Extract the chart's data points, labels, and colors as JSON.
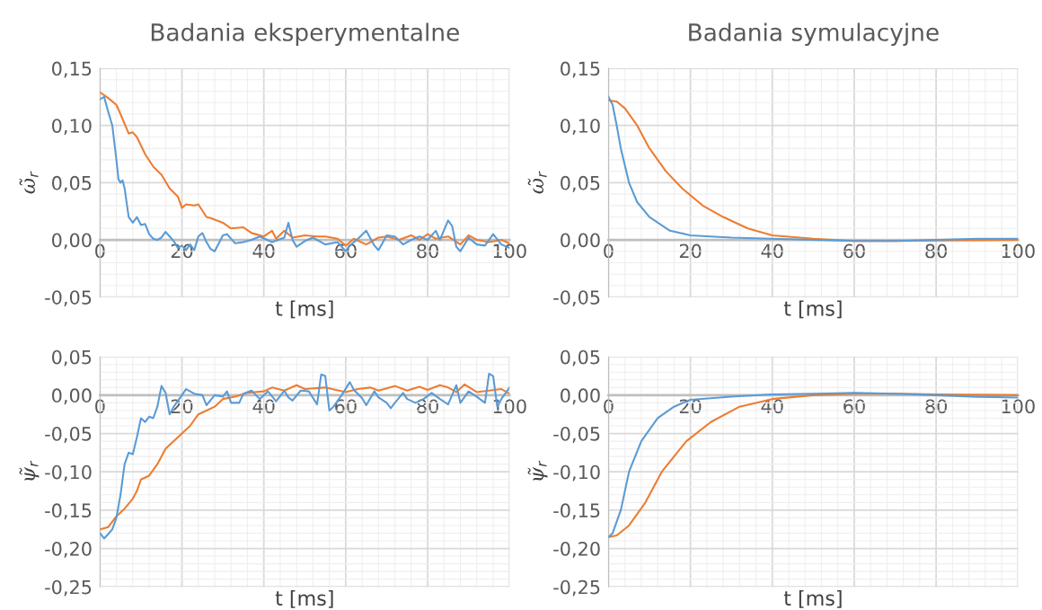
{
  "chart_data": [
    {
      "type": "line",
      "title": "Badania eksperymentalne",
      "xlabel": "t [ms]",
      "ylabel": "ω̃$_{r}$",
      "xlim": [
        0,
        100
      ],
      "xticks": [
        0,
        20,
        40,
        60,
        80,
        100
      ],
      "ylim": [
        -0.05,
        0.15
      ],
      "yticks": [
        {
          "value": -0.05,
          "label": "-0,05"
        },
        {
          "value": 0,
          "label": "0,00"
        },
        {
          "value": 0.05,
          "label": "0,05"
        },
        {
          "value": 0.1,
          "label": "0,10"
        },
        {
          "value": 0.15,
          "label": "0,15"
        }
      ],
      "grid": true,
      "legend": false,
      "series": [
        {
          "color": "#ed7d31",
          "x": [
            0,
            2,
            4,
            5,
            7,
            8,
            9,
            11,
            13,
            15,
            17,
            19,
            20,
            21,
            23,
            24,
            26,
            27,
            30,
            32,
            35,
            37,
            40,
            42,
            43,
            45,
            47,
            50,
            53,
            55,
            58,
            60,
            62,
            65,
            68,
            70,
            73,
            76,
            78,
            80,
            82,
            85,
            88,
            90,
            92,
            95,
            98,
            100
          ],
          "values": [
            0.129,
            0.124,
            0.118,
            0.11,
            0.093,
            0.094,
            0.09,
            0.075,
            0.064,
            0.057,
            0.045,
            0.038,
            0.028,
            0.031,
            0.03,
            0.031,
            0.02,
            0.019,
            0.015,
            0.01,
            0.011,
            0.006,
            0.003,
            0.008,
            0.001,
            0.008,
            0.002,
            0.004,
            0.003,
            0.003,
            0.001,
            -0.005,
            0.001,
            -0.004,
            0.002,
            0.003,
            0.0,
            0.004,
            0.0,
            0.005,
            0.001,
            0.003,
            -0.004,
            0.004,
            0.0,
            -0.002,
            0.0,
            -0.003
          ]
        },
        {
          "color": "#5b9bd5",
          "x": [
            0,
            1,
            2,
            3,
            4,
            4.5,
            5,
            5.5,
            6,
            7,
            8,
            9,
            10,
            11,
            12,
            13,
            14,
            15,
            16,
            17,
            18,
            19,
            20,
            21,
            22,
            23,
            24,
            25,
            26,
            27,
            28,
            30,
            31,
            33,
            35,
            37,
            39,
            42,
            45,
            46,
            47,
            48,
            50,
            52,
            55,
            58,
            60,
            61,
            63,
            65,
            67,
            68,
            70,
            72,
            74,
            76,
            78,
            80,
            82,
            83,
            85,
            86,
            87,
            88,
            90,
            92,
            94,
            96,
            98,
            100
          ],
          "values": [
            0.123,
            0.125,
            0.112,
            0.1,
            0.07,
            0.053,
            0.05,
            0.052,
            0.045,
            0.02,
            0.015,
            0.02,
            0.013,
            0.014,
            0.005,
            0.001,
            0.0,
            0.002,
            0.007,
            0.003,
            -0.001,
            -0.007,
            -0.005,
            -0.009,
            -0.004,
            -0.009,
            0.003,
            0.006,
            -0.002,
            -0.008,
            -0.01,
            0.004,
            0.005,
            -0.003,
            -0.002,
            0.0,
            0.003,
            -0.002,
            0.002,
            0.015,
            0.0,
            -0.006,
            -0.001,
            0.002,
            -0.004,
            -0.002,
            -0.01,
            -0.005,
            0.001,
            0.008,
            -0.005,
            -0.009,
            0.004,
            0.003,
            -0.004,
            0.0,
            0.003,
            0.0,
            0.008,
            0.0,
            0.017,
            0.012,
            -0.006,
            -0.01,
            0.002,
            -0.004,
            -0.005,
            0.005,
            -0.004,
            -0.007
          ]
        }
      ]
    },
    {
      "type": "line",
      "title": "Badania symulacyjne",
      "xlabel": "t [ms]",
      "ylabel": "ω̃$_{r}$",
      "xlim": [
        0,
        100
      ],
      "xticks": [
        0,
        20,
        40,
        60,
        80,
        100
      ],
      "ylim": [
        -0.05,
        0.15
      ],
      "yticks": [
        {
          "value": -0.05,
          "label": "-0,05"
        },
        {
          "value": 0,
          "label": "0,00"
        },
        {
          "value": 0.05,
          "label": "0,05"
        },
        {
          "value": 0.1,
          "label": "0,10"
        },
        {
          "value": 0.15,
          "label": "0,15"
        }
      ],
      "grid": true,
      "legend": false,
      "series": [
        {
          "color": "#ed7d31",
          "x": [
            0,
            2,
            4,
            7,
            10,
            14,
            18,
            23,
            28,
            34,
            40,
            50,
            60,
            70,
            80,
            100
          ],
          "values": [
            0.122,
            0.121,
            0.115,
            0.1,
            0.08,
            0.06,
            0.045,
            0.03,
            0.02,
            0.01,
            0.004,
            0.001,
            -0.001,
            -0.001,
            -0.0005,
            0.0
          ]
        },
        {
          "color": "#5b9bd5",
          "x": [
            0,
            1,
            2,
            3,
            5,
            7,
            10,
            15,
            20,
            30,
            50,
            60,
            70,
            80,
            90,
            100
          ],
          "values": [
            0.125,
            0.118,
            0.1,
            0.08,
            0.05,
            0.033,
            0.02,
            0.008,
            0.004,
            0.002,
            0.0,
            -0.001,
            -0.001,
            0.0,
            0.001,
            0.001
          ]
        }
      ]
    },
    {
      "type": "line",
      "xlabel": "t [ms]",
      "ylabel": "ψ̃$_{r}$",
      "xlim": [
        0,
        100
      ],
      "xticks": [
        0,
        20,
        40,
        60,
        80,
        100
      ],
      "ylim": [
        -0.25,
        0.05
      ],
      "yticks": [
        {
          "value": -0.25,
          "label": "-0,25"
        },
        {
          "value": -0.2,
          "label": "-0,20"
        },
        {
          "value": -0.15,
          "label": "-0,15"
        },
        {
          "value": -0.1,
          "label": "-0,10"
        },
        {
          "value": -0.05,
          "label": "-0,05"
        },
        {
          "value": 0,
          "label": "0,00"
        },
        {
          "value": 0.05,
          "label": "0,05"
        }
      ],
      "grid": true,
      "legend": false,
      "series": [
        {
          "color": "#ed7d31",
          "x": [
            0,
            2,
            4,
            6,
            8,
            9,
            10,
            12,
            14,
            16,
            18,
            20,
            22,
            24,
            26,
            28,
            30,
            33,
            36,
            40,
            42,
            45,
            48,
            50,
            55,
            60,
            63,
            66,
            68,
            72,
            75,
            78,
            80,
            83,
            85,
            87,
            89,
            92,
            95,
            98,
            100
          ],
          "values": [
            -0.175,
            -0.172,
            -0.158,
            -0.148,
            -0.135,
            -0.125,
            -0.11,
            -0.105,
            -0.09,
            -0.07,
            -0.06,
            -0.05,
            -0.04,
            -0.025,
            -0.02,
            -0.015,
            -0.005,
            -0.002,
            0.003,
            0.005,
            0.01,
            0.006,
            0.013,
            0.008,
            0.01,
            0.004,
            0.008,
            0.01,
            0.006,
            0.012,
            0.006,
            0.011,
            0.007,
            0.013,
            0.01,
            0.004,
            0.014,
            0.004,
            0.006,
            0.008,
            0.002
          ]
        },
        {
          "color": "#5b9bd5",
          "x": [
            0,
            1,
            3,
            4,
            5,
            6,
            7,
            8,
            9,
            10,
            11,
            12,
            13,
            14,
            15,
            16,
            17,
            18,
            20,
            21,
            23,
            25,
            26,
            28,
            30,
            31,
            32,
            34,
            35,
            37,
            39,
            41,
            43,
            45,
            46,
            47,
            49,
            51,
            53,
            54,
            55,
            56,
            57,
            59,
            61,
            62,
            64,
            65,
            67,
            68,
            70,
            71,
            72,
            74,
            75,
            77,
            79,
            81,
            83,
            85,
            87,
            88,
            90,
            92,
            94,
            95,
            96,
            97,
            98,
            100
          ],
          "values": [
            -0.18,
            -0.187,
            -0.175,
            -0.16,
            -0.13,
            -0.09,
            -0.075,
            -0.077,
            -0.055,
            -0.03,
            -0.035,
            -0.028,
            -0.03,
            -0.015,
            0.012,
            0.003,
            -0.025,
            -0.015,
            0.0,
            0.008,
            0.002,
            0.0,
            -0.013,
            0.0,
            -0.002,
            0.005,
            -0.01,
            -0.01,
            0.002,
            0.006,
            -0.005,
            0.005,
            -0.008,
            0.006,
            -0.003,
            -0.007,
            0.006,
            0.005,
            -0.012,
            0.027,
            0.025,
            -0.02,
            -0.015,
            0.0,
            0.017,
            0.007,
            -0.004,
            -0.013,
            0.005,
            -0.003,
            -0.01,
            -0.017,
            -0.01,
            0.003,
            -0.005,
            -0.01,
            -0.005,
            0.003,
            -0.005,
            -0.012,
            0.013,
            -0.01,
            0.005,
            -0.002,
            -0.01,
            0.028,
            0.025,
            -0.015,
            -0.005,
            0.01
          ]
        }
      ]
    },
    {
      "type": "line",
      "xlabel": "t [ms]",
      "ylabel": "ψ̃$_{r}$",
      "xlim": [
        0,
        100
      ],
      "xticks": [
        0,
        20,
        40,
        60,
        80,
        100
      ],
      "ylim": [
        -0.25,
        0.05
      ],
      "yticks": [
        {
          "value": -0.25,
          "label": "-0,25"
        },
        {
          "value": -0.2,
          "label": "-0,20"
        },
        {
          "value": -0.15,
          "label": "-0,15"
        },
        {
          "value": -0.1,
          "label": "-0,10"
        },
        {
          "value": -0.05,
          "label": "-0,05"
        },
        {
          "value": 0,
          "label": "0,00"
        },
        {
          "value": 0.05,
          "label": "0,05"
        }
      ],
      "grid": true,
      "legend": false,
      "series": [
        {
          "color": "#ed7d31",
          "x": [
            0,
            2,
            5,
            9,
            13,
            19,
            25,
            32,
            40,
            50,
            60,
            70,
            80,
            100
          ],
          "values": [
            -0.185,
            -0.183,
            -0.17,
            -0.14,
            -0.1,
            -0.06,
            -0.035,
            -0.015,
            -0.005,
            0.0,
            0.002,
            0.002,
            0.001,
            0.0
          ]
        },
        {
          "color": "#5b9bd5",
          "x": [
            0,
            1,
            3,
            5,
            8,
            12,
            16,
            20,
            30,
            40,
            50,
            60,
            70,
            80,
            90,
            100
          ],
          "values": [
            -0.185,
            -0.18,
            -0.15,
            -0.1,
            -0.06,
            -0.03,
            -0.015,
            -0.006,
            -0.002,
            0.001,
            0.002,
            0.003,
            0.002,
            0.0,
            -0.002,
            -0.003
          ]
        }
      ]
    }
  ]
}
